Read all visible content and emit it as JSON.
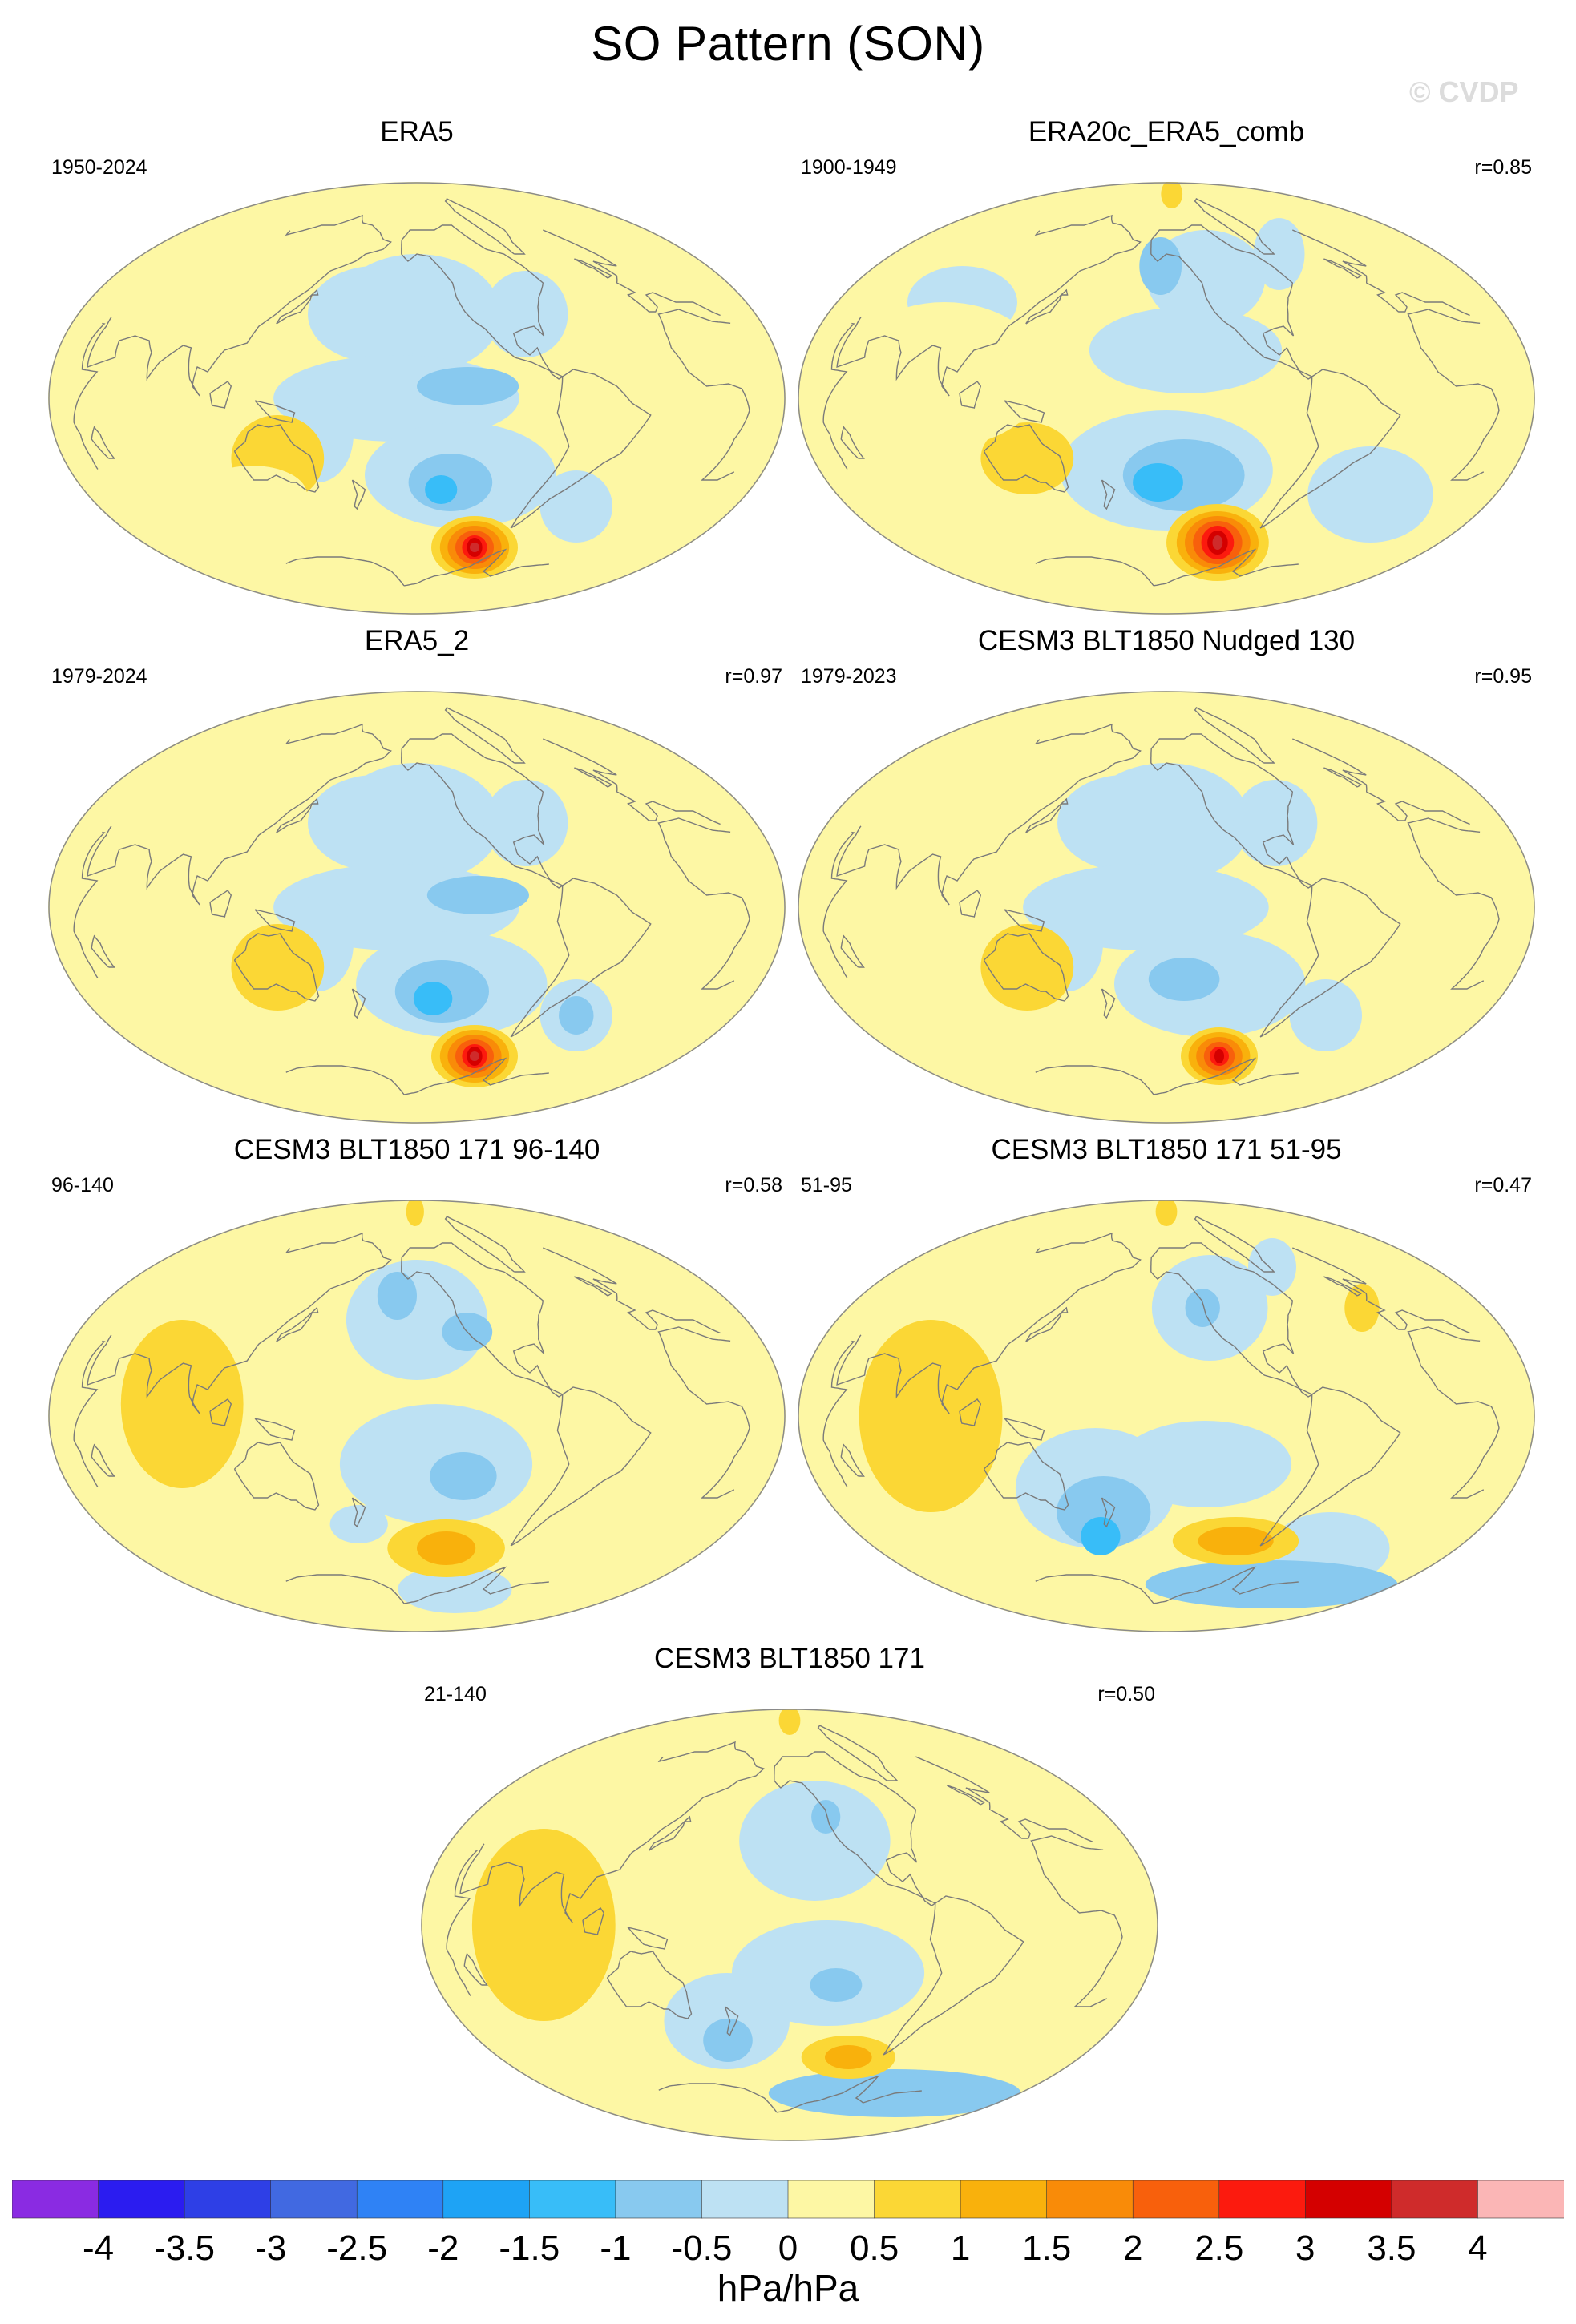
{
  "title": "SO Pattern (SON)",
  "watermark": "© CVDP",
  "units": "hPa/hPa",
  "colors": {
    "outline": "#8a8a8a",
    "coast": "#7a7a7a",
    "bin_edges": [
      "#8a2be2",
      "#2b1cf0",
      "#2e3fe6",
      "#4169e1",
      "#2f82f5",
      "#1ea3f5",
      "#38bdf8",
      "#88c9ef",
      "#bde1f3",
      "#fdf7a4",
      "#fbd735",
      "#f9b10c",
      "#f98b08",
      "#f8600c",
      "#fc1a0e",
      "#d40000",
      "#cf2b2b",
      "#fbb6b6"
    ]
  },
  "colorbar": {
    "labels": [
      "-4",
      "-3.5",
      "-3",
      "-2.5",
      "-2",
      "-1.5",
      "-1",
      "-0.5",
      "0",
      "0.5",
      "1",
      "1.5",
      "2",
      "2.5",
      "3",
      "3.5",
      "4"
    ]
  },
  "panels": [
    {
      "title": "ERA5",
      "period": "1950-2024",
      "corr": "",
      "features": [
        {
          "lon": -150,
          "lat": 35,
          "rx": 50,
          "ry": 25,
          "level": -1
        },
        {
          "lon": -175,
          "lat": 35,
          "rx": 40,
          "ry": 20,
          "level": -1
        },
        {
          "lon": -85,
          "lat": 35,
          "rx": 25,
          "ry": 18,
          "level": -1
        },
        {
          "lon": -160,
          "lat": 0,
          "rx": 60,
          "ry": 18,
          "level": -1
        },
        {
          "lon": -125,
          "lat": 5,
          "rx": 25,
          "ry": 8,
          "level": -2
        },
        {
          "lon": -125,
          "lat": -32,
          "rx": 55,
          "ry": 22,
          "level": -1
        },
        {
          "lon": -130,
          "lat": -35,
          "rx": 25,
          "ry": 12,
          "level": -2
        },
        {
          "lon": -135,
          "lat": -38,
          "rx": 10,
          "ry": 6,
          "level": -3
        },
        {
          "lon": 160,
          "lat": -15,
          "rx": 18,
          "ry": 20,
          "level": -1
        },
        {
          "lon": -40,
          "lat": -45,
          "rx": 25,
          "ry": 15,
          "level": -1
        },
        {
          "lon": 135,
          "lat": -25,
          "rx": 25,
          "ry": 18,
          "level": 1
        },
        {
          "lon": 105,
          "lat": -40,
          "rx": 35,
          "ry": 12,
          "level": 0
        },
        {
          "lon": -90,
          "lat": -62,
          "rx": 45,
          "ry": 13,
          "level": 1
        },
        {
          "lon": -90,
          "lat": -62,
          "rx": 36,
          "ry": 11,
          "level": 2
        },
        {
          "lon": -90,
          "lat": -62,
          "rx": 28,
          "ry": 9,
          "level": 3
        },
        {
          "lon": -90,
          "lat": -62,
          "rx": 20,
          "ry": 7,
          "level": 4
        },
        {
          "lon": -90,
          "lat": -62,
          "rx": 13,
          "ry": 5,
          "level": 5
        },
        {
          "lon": -90,
          "lat": -62,
          "rx": 8,
          "ry": 4,
          "level": 6
        },
        {
          "lon": -90,
          "lat": -62,
          "rx": 4,
          "ry": 2,
          "level": 7
        }
      ]
    },
    {
      "title": "ERA20c_ERA5_comb",
      "period": "1900-1949",
      "corr": "r=0.85",
      "features": [
        {
          "lon": -120,
          "lat": 50,
          "rx": 45,
          "ry": 20,
          "level": -1
        },
        {
          "lon": -155,
          "lat": 55,
          "rx": 18,
          "ry": 12,
          "level": -2
        },
        {
          "lon": -40,
          "lat": 60,
          "rx": 25,
          "ry": 15,
          "level": -1
        },
        {
          "lon": 80,
          "lat": 40,
          "rx": 35,
          "ry": 15,
          "level": -1
        },
        {
          "lon": -140,
          "lat": 20,
          "rx": 50,
          "ry": 18,
          "level": -1
        },
        {
          "lon": -150,
          "lat": -30,
          "rx": 60,
          "ry": 25,
          "level": -1
        },
        {
          "lon": -140,
          "lat": -32,
          "rx": 35,
          "ry": 15,
          "level": -2
        },
        {
          "lon": -155,
          "lat": -35,
          "rx": 15,
          "ry": 8,
          "level": -3
        },
        {
          "lon": -20,
          "lat": -40,
          "rx": 40,
          "ry": 20,
          "level": -1
        },
        {
          "lon": -120,
          "lat": 85,
          "rx": 60,
          "ry": 6,
          "level": 1
        },
        {
          "lon": 135,
          "lat": -25,
          "rx": 25,
          "ry": 15,
          "level": 1
        },
        {
          "lon": 100,
          "lat": 10,
          "rx": 50,
          "ry": 30,
          "level": 0
        },
        {
          "lon": -100,
          "lat": -60,
          "rx": 50,
          "ry": 16,
          "level": 1
        },
        {
          "lon": -100,
          "lat": -60,
          "rx": 40,
          "ry": 13,
          "level": 2
        },
        {
          "lon": -100,
          "lat": -60,
          "rx": 32,
          "ry": 11,
          "level": 3
        },
        {
          "lon": -100,
          "lat": -60,
          "rx": 24,
          "ry": 9,
          "level": 4
        },
        {
          "lon": -100,
          "lat": -60,
          "rx": 16,
          "ry": 7,
          "level": 5
        },
        {
          "lon": -100,
          "lat": -60,
          "rx": 10,
          "ry": 5,
          "level": 6
        },
        {
          "lon": -100,
          "lat": -60,
          "rx": 5,
          "ry": 3,
          "level": 7
        }
      ]
    },
    {
      "title": "ERA5_2",
      "period": "1979-2024",
      "corr": "r=0.97",
      "features": [
        {
          "lon": -150,
          "lat": 35,
          "rx": 50,
          "ry": 25,
          "level": -1
        },
        {
          "lon": -175,
          "lat": 35,
          "rx": 40,
          "ry": 20,
          "level": -1
        },
        {
          "lon": -85,
          "lat": 35,
          "rx": 25,
          "ry": 18,
          "level": -1
        },
        {
          "lon": -160,
          "lat": 0,
          "rx": 60,
          "ry": 18,
          "level": -1
        },
        {
          "lon": -120,
          "lat": 5,
          "rx": 25,
          "ry": 8,
          "level": -2
        },
        {
          "lon": -130,
          "lat": -32,
          "rx": 55,
          "ry": 22,
          "level": -1
        },
        {
          "lon": -135,
          "lat": -35,
          "rx": 28,
          "ry": 13,
          "level": -2
        },
        {
          "lon": -140,
          "lat": -38,
          "rx": 12,
          "ry": 7,
          "level": -3
        },
        {
          "lon": 160,
          "lat": -15,
          "rx": 18,
          "ry": 20,
          "level": -1
        },
        {
          "lon": -40,
          "lat": -45,
          "rx": 25,
          "ry": 15,
          "level": -1
        },
        {
          "lon": -40,
          "lat": -45,
          "rx": 12,
          "ry": 8,
          "level": -2
        },
        {
          "lon": 135,
          "lat": -25,
          "rx": 25,
          "ry": 18,
          "level": 1
        },
        {
          "lon": -90,
          "lat": -62,
          "rx": 45,
          "ry": 13,
          "level": 1
        },
        {
          "lon": -90,
          "lat": -62,
          "rx": 36,
          "ry": 11,
          "level": 2
        },
        {
          "lon": -90,
          "lat": -62,
          "rx": 28,
          "ry": 9,
          "level": 3
        },
        {
          "lon": -90,
          "lat": -62,
          "rx": 20,
          "ry": 7,
          "level": 4
        },
        {
          "lon": -90,
          "lat": -62,
          "rx": 13,
          "ry": 5,
          "level": 5
        },
        {
          "lon": -90,
          "lat": -62,
          "rx": 8,
          "ry": 4,
          "level": 6
        },
        {
          "lon": -90,
          "lat": -62,
          "rx": 4,
          "ry": 2,
          "level": 7
        }
      ]
    },
    {
      "title": "CESM3 BLT1850 Nudged 130",
      "period": "1979-2023",
      "corr": "r=0.95",
      "features": [
        {
          "lon": -150,
          "lat": 35,
          "rx": 50,
          "ry": 25,
          "level": -1
        },
        {
          "lon": -175,
          "lat": 35,
          "rx": 40,
          "ry": 20,
          "level": -1
        },
        {
          "lon": -85,
          "lat": 35,
          "rx": 25,
          "ry": 18,
          "level": -1
        },
        {
          "lon": -160,
          "lat": 0,
          "rx": 60,
          "ry": 18,
          "level": -1
        },
        {
          "lon": -125,
          "lat": -32,
          "rx": 55,
          "ry": 22,
          "level": -1
        },
        {
          "lon": -140,
          "lat": -30,
          "rx": 20,
          "ry": 9,
          "level": -2
        },
        {
          "lon": 160,
          "lat": -15,
          "rx": 18,
          "ry": 20,
          "level": -1
        },
        {
          "lon": -40,
          "lat": -45,
          "rx": 25,
          "ry": 15,
          "level": -1
        },
        {
          "lon": 135,
          "lat": -25,
          "rx": 25,
          "ry": 18,
          "level": 1
        },
        {
          "lon": -95,
          "lat": -62,
          "rx": 40,
          "ry": 12,
          "level": 1
        },
        {
          "lon": -95,
          "lat": -62,
          "rx": 32,
          "ry": 10,
          "level": 2
        },
        {
          "lon": -95,
          "lat": -62,
          "rx": 24,
          "ry": 8,
          "level": 3
        },
        {
          "lon": -95,
          "lat": -62,
          "rx": 16,
          "ry": 6,
          "level": 4
        },
        {
          "lon": -95,
          "lat": -62,
          "rx": 10,
          "ry": 4,
          "level": 5
        },
        {
          "lon": -95,
          "lat": -62,
          "rx": 5,
          "ry": 3,
          "level": 6
        }
      ]
    },
    {
      "title": "CESM3 BLT1850 171 96-140",
      "period": "96-140",
      "corr": "r=0.58",
      "features": [
        {
          "lon": -150,
          "lat": 40,
          "rx": 45,
          "ry": 25,
          "level": -1
        },
        {
          "lon": -165,
          "lat": 50,
          "rx": 15,
          "ry": 10,
          "level": -2
        },
        {
          "lon": -120,
          "lat": 35,
          "rx": 15,
          "ry": 8,
          "level": -2
        },
        {
          "lon": -140,
          "lat": -20,
          "rx": 50,
          "ry": 25,
          "level": -1
        },
        {
          "lon": -125,
          "lat": -25,
          "rx": 18,
          "ry": 10,
          "level": -2
        },
        {
          "lon": -90,
          "lat": -72,
          "rx": 90,
          "ry": 10,
          "level": -1
        },
        {
          "lon": 170,
          "lat": -45,
          "rx": 20,
          "ry": 8,
          "level": -1
        },
        {
          "lon": -160,
          "lat": 85,
          "rx": 50,
          "ry": 6,
          "level": 1
        },
        {
          "lon": 95,
          "lat": 5,
          "rx": 30,
          "ry": 35,
          "level": 1
        },
        {
          "lon": -125,
          "lat": -55,
          "rx": 50,
          "ry": 12,
          "level": 1
        },
        {
          "lon": -125,
          "lat": -55,
          "rx": 25,
          "ry": 7,
          "level": 2
        }
      ]
    },
    {
      "title": "CESM3 BLT1850 171 51-95",
      "period": "51-95",
      "corr": "r=0.47",
      "features": [
        {
          "lon": -120,
          "lat": 45,
          "rx": 40,
          "ry": 22,
          "level": -1
        },
        {
          "lon": -125,
          "lat": 45,
          "rx": 12,
          "ry": 8,
          "level": -2
        },
        {
          "lon": -40,
          "lat": 62,
          "rx": 25,
          "ry": 12,
          "level": -1
        },
        {
          "lon": -130,
          "lat": -20,
          "rx": 45,
          "ry": 18,
          "level": -1
        },
        {
          "lon": 170,
          "lat": -30,
          "rx": 45,
          "ry": 25,
          "level": -1
        },
        {
          "lon": 170,
          "lat": -40,
          "rx": 30,
          "ry": 15,
          "level": -2
        },
        {
          "lon": 160,
          "lat": -50,
          "rx": 15,
          "ry": 8,
          "level": -3
        },
        {
          "lon": -10,
          "lat": -55,
          "rx": 50,
          "ry": 15,
          "level": -1
        },
        {
          "lon": 0,
          "lat": -70,
          "rx": 180,
          "ry": 10,
          "level": -2
        },
        {
          "lon": -150,
          "lat": 85,
          "rx": 60,
          "ry": 6,
          "level": 1
        },
        {
          "lon": 95,
          "lat": 0,
          "rx": 35,
          "ry": 40,
          "level": 1
        },
        {
          "lon": -15,
          "lat": 45,
          "rx": 12,
          "ry": 10,
          "level": 1
        },
        {
          "lon": -95,
          "lat": -52,
          "rx": 50,
          "ry": 10,
          "level": 1
        },
        {
          "lon": -95,
          "lat": -52,
          "rx": 30,
          "ry": 6,
          "level": 2
        }
      ]
    },
    {
      "title": "CESM3 BLT1850 171",
      "period": "21-140",
      "corr": "r=0.50",
      "features": [
        {
          "lon": -135,
          "lat": 35,
          "rx": 45,
          "ry": 25,
          "level": -1
        },
        {
          "lon": -125,
          "lat": 45,
          "rx": 10,
          "ry": 7,
          "level": -2
        },
        {
          "lon": -130,
          "lat": -20,
          "rx": 50,
          "ry": 22,
          "level": -1
        },
        {
          "lon": -125,
          "lat": -25,
          "rx": 14,
          "ry": 7,
          "level": -2
        },
        {
          "lon": 170,
          "lat": -40,
          "rx": 40,
          "ry": 20,
          "level": -1
        },
        {
          "lon": 165,
          "lat": -48,
          "rx": 18,
          "ry": 9,
          "level": -2
        },
        {
          "lon": 0,
          "lat": -70,
          "rx": 180,
          "ry": 10,
          "level": -2
        },
        {
          "lon": -150,
          "lat": 85,
          "rx": 60,
          "ry": 6,
          "level": 1
        },
        {
          "lon": 90,
          "lat": 0,
          "rx": 35,
          "ry": 40,
          "level": 1
        },
        {
          "lon": -100,
          "lat": -55,
          "rx": 40,
          "ry": 9,
          "level": 1
        },
        {
          "lon": -100,
          "lat": -55,
          "rx": 20,
          "ry": 5,
          "level": 2
        }
      ]
    }
  ]
}
